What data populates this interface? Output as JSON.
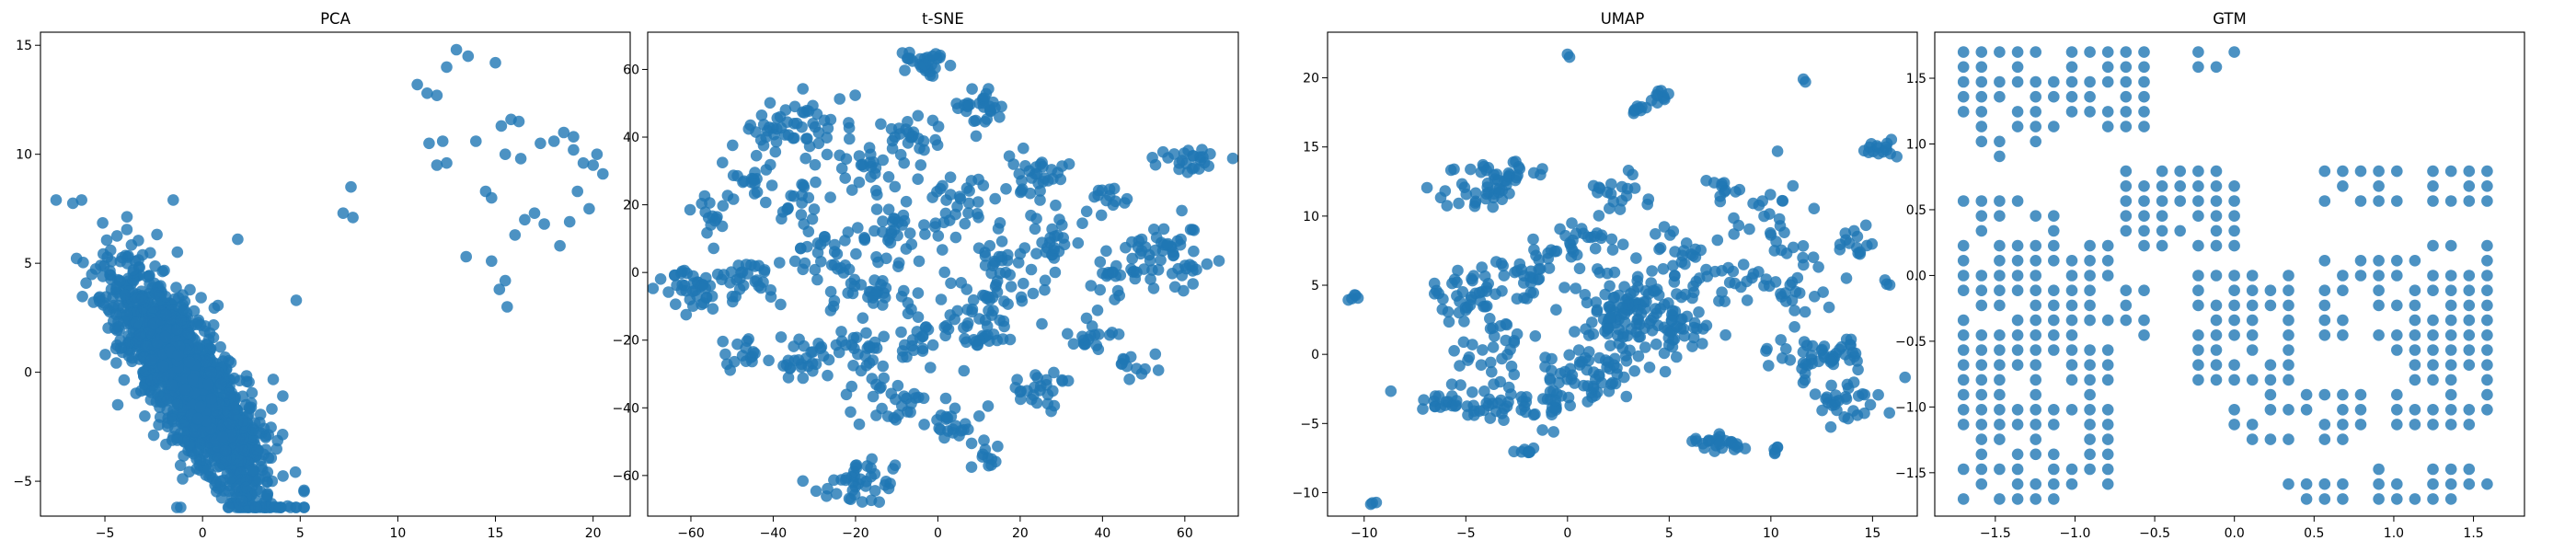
{
  "colors": {
    "point": "#1f77b4",
    "axis": "#000000",
    "background": "#ffffff"
  },
  "chart_data": [
    {
      "type": "scatter",
      "title": "PCA",
      "xlabel": "",
      "ylabel": "",
      "xlim": [
        -8.3,
        21.9
      ],
      "ylim": [
        -6.6,
        15.6
      ],
      "xticks": [
        -5,
        0,
        5,
        10,
        15,
        20
      ],
      "yticks": [
        -5,
        0,
        5,
        10,
        15
      ],
      "grid": false,
      "legend": "none",
      "clusters": [
        {
          "cx": -0.6,
          "cy": -0.6,
          "sx": 1.9,
          "sy": 2.6,
          "rho": -0.78,
          "n": 1700,
          "lo": [
            -7.5,
            -6.2
          ],
          "hi": [
            5.2,
            7.9
          ]
        }
      ],
      "points": [
        [
          11.0,
          13.2
        ],
        [
          11.5,
          12.8
        ],
        [
          12.0,
          12.7
        ],
        [
          12.5,
          14.0
        ],
        [
          13.0,
          14.8
        ],
        [
          13.6,
          14.5
        ],
        [
          15.0,
          14.2
        ],
        [
          11.6,
          10.5
        ],
        [
          12.3,
          10.6
        ],
        [
          12.0,
          9.5
        ],
        [
          12.5,
          9.6
        ],
        [
          14.0,
          10.6
        ],
        [
          15.3,
          11.3
        ],
        [
          15.8,
          11.6
        ],
        [
          16.2,
          11.5
        ],
        [
          15.5,
          10.0
        ],
        [
          16.3,
          9.8
        ],
        [
          14.5,
          8.3
        ],
        [
          14.8,
          8.0
        ],
        [
          17.3,
          10.5
        ],
        [
          16.5,
          7.0
        ],
        [
          17.0,
          7.3
        ],
        [
          16.0,
          6.3
        ],
        [
          17.5,
          6.8
        ],
        [
          18.0,
          10.6
        ],
        [
          18.5,
          11.0
        ],
        [
          19.0,
          10.2
        ],
        [
          19.5,
          9.6
        ],
        [
          20.0,
          9.5
        ],
        [
          20.5,
          9.1
        ],
        [
          19.2,
          8.3
        ],
        [
          19.8,
          7.5
        ],
        [
          18.8,
          6.9
        ],
        [
          18.3,
          5.8
        ],
        [
          19.0,
          10.8
        ],
        [
          20.2,
          10.0
        ],
        [
          15.5,
          4.2
        ],
        [
          15.2,
          3.8
        ],
        [
          14.8,
          5.1
        ],
        [
          15.6,
          3.0
        ],
        [
          13.5,
          5.3
        ],
        [
          7.2,
          7.3
        ],
        [
          7.7,
          7.1
        ],
        [
          7.6,
          8.5
        ],
        [
          4.8,
          3.3
        ],
        [
          1.8,
          6.1
        ],
        [
          -1.5,
          7.9
        ]
      ]
    },
    {
      "type": "scatter",
      "title": "t-SNE",
      "xlabel": "",
      "ylabel": "",
      "xlim": [
        -70.5,
        73.0
      ],
      "ylim": [
        -72.0,
        71.0
      ],
      "xticks": [
        -60,
        -40,
        -20,
        0,
        20,
        40,
        60
      ],
      "yticks": [
        -60,
        -40,
        -20,
        0,
        20,
        40,
        60
      ],
      "grid": false,
      "legend": "none",
      "clusters": [
        {
          "cx": -58,
          "cy": -4,
          "sx": 4,
          "sy": 3,
          "n": 40
        },
        {
          "cx": -45,
          "cy": 0,
          "sx": 3.5,
          "sy": 4,
          "n": 30
        },
        {
          "cx": -38,
          "cy": 40,
          "sx": 4,
          "sy": 4,
          "n": 30
        },
        {
          "cx": -46,
          "cy": 28,
          "sx": 3,
          "sy": 3,
          "n": 18
        },
        {
          "cx": -30,
          "cy": 45,
          "sx": 4,
          "sy": 4,
          "n": 25
        },
        {
          "cx": -20,
          "cy": 32,
          "sx": 4,
          "sy": 4,
          "n": 25
        },
        {
          "cx": -33,
          "cy": -25,
          "sx": 4,
          "sy": 3,
          "n": 25
        },
        {
          "cx": -45,
          "cy": -25,
          "sx": 3,
          "sy": 3,
          "n": 18
        },
        {
          "cx": -25,
          "cy": 5,
          "sx": 5,
          "sy": 5,
          "n": 35
        },
        {
          "cx": -15,
          "cy": -5,
          "sx": 5,
          "sy": 5,
          "n": 35
        },
        {
          "cx": -20,
          "cy": -62,
          "sx": 5,
          "sy": 3,
          "n": 40
        },
        {
          "cx": -10,
          "cy": -38,
          "sx": 5,
          "sy": 4,
          "n": 30
        },
        {
          "cx": -5,
          "cy": -20,
          "sx": 4,
          "sy": 4,
          "n": 25
        },
        {
          "cx": -20,
          "cy": -22,
          "sx": 4,
          "sy": 3,
          "n": 25
        },
        {
          "cx": -3,
          "cy": 62,
          "sx": 3,
          "sy": 2,
          "n": 30
        },
        {
          "cx": -5,
          "cy": 40,
          "sx": 4,
          "sy": 3,
          "n": 25
        },
        {
          "cx": 10,
          "cy": 48,
          "sx": 4,
          "sy": 3,
          "n": 30
        },
        {
          "cx": 5,
          "cy": 20,
          "sx": 5,
          "sy": 5,
          "n": 35
        },
        {
          "cx": 10,
          "cy": -15,
          "sx": 5,
          "sy": 6,
          "n": 45
        },
        {
          "cx": 15,
          "cy": 0,
          "sx": 5,
          "sy": 5,
          "n": 40
        },
        {
          "cx": 25,
          "cy": 30,
          "sx": 4,
          "sy": 4,
          "n": 30
        },
        {
          "cx": 28,
          "cy": 10,
          "sx": 3,
          "sy": 4,
          "n": 25
        },
        {
          "cx": 25,
          "cy": -35,
          "sx": 4,
          "sy": 3,
          "n": 25
        },
        {
          "cx": 5,
          "cy": -45,
          "sx": 4,
          "sy": 3,
          "n": 25
        },
        {
          "cx": 38,
          "cy": -20,
          "sx": 3,
          "sy": 3,
          "n": 18
        },
        {
          "cx": 48,
          "cy": -27,
          "sx": 3,
          "sy": 2,
          "n": 12
        },
        {
          "cx": 55,
          "cy": 5,
          "sx": 6,
          "sy": 5,
          "n": 60
        },
        {
          "cx": 60,
          "cy": 33,
          "sx": 4,
          "sy": 2,
          "n": 25
        },
        {
          "cx": -55,
          "cy": 18,
          "sx": 3,
          "sy": 3,
          "n": 15
        },
        {
          "cx": -35,
          "cy": 20,
          "sx": 4,
          "sy": 4,
          "n": 22
        },
        {
          "cx": 40,
          "cy": 22,
          "sx": 3,
          "sy": 3,
          "n": 15
        },
        {
          "cx": -10,
          "cy": 12,
          "sx": 4,
          "sy": 4,
          "n": 25
        },
        {
          "cx": 40,
          "cy": -5,
          "sx": 3,
          "sy": 3,
          "n": 15
        },
        {
          "cx": 12,
          "cy": -55,
          "sx": 2,
          "sy": 2,
          "n": 10
        }
      ],
      "points": []
    },
    {
      "type": "scatter",
      "title": "UMAP",
      "xlabel": "",
      "ylabel": "",
      "xlim": [
        -11.8,
        17.2
      ],
      "ylim": [
        -11.7,
        23.3
      ],
      "xticks": [
        -10,
        -5,
        0,
        5,
        10,
        15
      ],
      "yticks": [
        -10,
        -5,
        0,
        5,
        10,
        15,
        20
      ],
      "grid": false,
      "legend": "none",
      "clusters": [
        {
          "cx": -10.5,
          "cy": 4.1,
          "sx": 0.15,
          "sy": 0.2,
          "n": 5
        },
        {
          "cx": -4.0,
          "cy": 12.0,
          "sx": 1.2,
          "sy": 0.9,
          "n": 40
        },
        {
          "cx": -5.0,
          "cy": 4.5,
          "sx": 1.0,
          "sy": 1.0,
          "n": 40
        },
        {
          "cx": -3.5,
          "cy": 1.0,
          "sx": 1.0,
          "sy": 1.2,
          "n": 35
        },
        {
          "cx": -5.0,
          "cy": -3.5,
          "sx": 1.2,
          "sy": 0.6,
          "n": 35
        },
        {
          "cx": -2.0,
          "cy": -3.5,
          "sx": 1.0,
          "sy": 0.8,
          "n": 30
        },
        {
          "cx": 1.0,
          "cy": -1.5,
          "sx": 1.3,
          "sy": 1.2,
          "n": 60
        },
        {
          "cx": 2.5,
          "cy": 2.5,
          "sx": 0.9,
          "sy": 2.0,
          "n": 80
        },
        {
          "cx": 4.0,
          "cy": 3.5,
          "sx": 0.8,
          "sy": 1.0,
          "n": 30
        },
        {
          "cx": 5.5,
          "cy": 2.0,
          "sx": 1.0,
          "sy": 1.0,
          "n": 35
        },
        {
          "cx": 5.5,
          "cy": 7.0,
          "sx": 0.8,
          "sy": 0.8,
          "n": 25
        },
        {
          "cx": 0.5,
          "cy": 8.0,
          "sx": 1.5,
          "sy": 1.0,
          "n": 35
        },
        {
          "cx": 2.5,
          "cy": 11.5,
          "sx": 0.8,
          "sy": 0.5,
          "n": 15
        },
        {
          "cx": 4.5,
          "cy": 18.6,
          "sx": 0.3,
          "sy": 0.3,
          "n": 10
        },
        {
          "cx": 3.5,
          "cy": 17.6,
          "sx": 0.3,
          "sy": 0.2,
          "n": 8
        },
        {
          "cx": -2.5,
          "cy": 13.2,
          "sx": 0.8,
          "sy": 0.4,
          "n": 15
        },
        {
          "cx": 10.0,
          "cy": 9.5,
          "sx": 1.3,
          "sy": 1.8,
          "n": 30
        },
        {
          "cx": 8.0,
          "cy": 5.0,
          "sx": 1.0,
          "sy": 0.8,
          "n": 25
        },
        {
          "cx": 12.5,
          "cy": -0.2,
          "sx": 1.2,
          "sy": 0.8,
          "n": 50
        },
        {
          "cx": 13.5,
          "cy": -3.5,
          "sx": 0.9,
          "sy": 0.8,
          "n": 30
        },
        {
          "cx": 14.5,
          "cy": 8.0,
          "sx": 0.6,
          "sy": 0.8,
          "n": 12
        },
        {
          "cx": 15.5,
          "cy": 14.8,
          "sx": 0.4,
          "sy": 0.4,
          "n": 15
        },
        {
          "cx": 7.5,
          "cy": -6.5,
          "sx": 0.7,
          "sy": 0.3,
          "n": 25
        },
        {
          "cx": -2.0,
          "cy": -6.9,
          "sx": 0.3,
          "sy": 0.2,
          "n": 8
        },
        {
          "cx": -9.5,
          "cy": -10.7,
          "sx": 0.1,
          "sy": 0.1,
          "n": 3
        },
        {
          "cx": 10.3,
          "cy": -6.9,
          "sx": 0.2,
          "sy": 0.2,
          "n": 5
        },
        {
          "cx": 15.8,
          "cy": 5.3,
          "sx": 0.1,
          "sy": 0.15,
          "n": 3
        },
        {
          "cx": 8.0,
          "cy": 12.0,
          "sx": 0.5,
          "sy": 0.4,
          "n": 10
        },
        {
          "cx": 11.5,
          "cy": 4.5,
          "sx": 1.0,
          "sy": 1.0,
          "n": 20
        },
        {
          "cx": -1.5,
          "cy": 6.0,
          "sx": 1.0,
          "sy": 1.0,
          "n": 25
        }
      ],
      "points": [
        [
          0.0,
          21.7
        ],
        [
          0.1,
          21.5
        ],
        [
          11.6,
          19.9
        ],
        [
          11.7,
          19.7
        ],
        [
          3.0,
          13.3
        ],
        [
          3.2,
          13.0
        ]
      ]
    },
    {
      "type": "scatter",
      "title": "GTM",
      "xlabel": "",
      "ylabel": "",
      "xlim": [
        -1.88,
        1.82
      ],
      "ylim": [
        -1.83,
        1.85
      ],
      "xticks": [
        -1.5,
        -1.0,
        -0.5,
        0.0,
        0.5,
        1.0,
        1.5
      ],
      "yticks": [
        -1.5,
        -1.0,
        -0.5,
        0.0,
        0.5,
        1.0,
        1.5
      ],
      "grid": false,
      "legend": "none",
      "lattice": {
        "x0": -1.7,
        "y0": -1.7,
        "step": 0.1133,
        "n": 31
      },
      "regions": [
        [
          -1.7,
          -1.2,
          0.9,
          1.7
        ],
        [
          -1.4,
          -0.55,
          1.05,
          1.7
        ],
        [
          -0.45,
          -0.2,
          1.55,
          1.7
        ],
        [
          -0.15,
          0.0,
          1.55,
          1.7
        ],
        [
          -1.7,
          -1.1,
          -1.7,
          0.6
        ],
        [
          -1.25,
          -0.75,
          -1.6,
          0.3
        ],
        [
          -1.1,
          -0.5,
          -0.6,
          0.1
        ],
        [
          -0.7,
          0.05,
          0.2,
          0.8
        ],
        [
          -0.3,
          0.4,
          -0.9,
          0.1
        ],
        [
          -0.05,
          0.9,
          -1.3,
          -0.8
        ],
        [
          0.3,
          0.7,
          -1.7,
          -1.5
        ],
        [
          0.5,
          1.2,
          -0.5,
          0.2
        ],
        [
          0.55,
          1.1,
          0.5,
          0.8
        ],
        [
          1.0,
          1.65,
          -1.2,
          0.3
        ],
        [
          1.15,
          1.6,
          0.5,
          0.9
        ],
        [
          0.9,
          1.6,
          -1.7,
          -1.4
        ]
      ],
      "points": []
    }
  ]
}
